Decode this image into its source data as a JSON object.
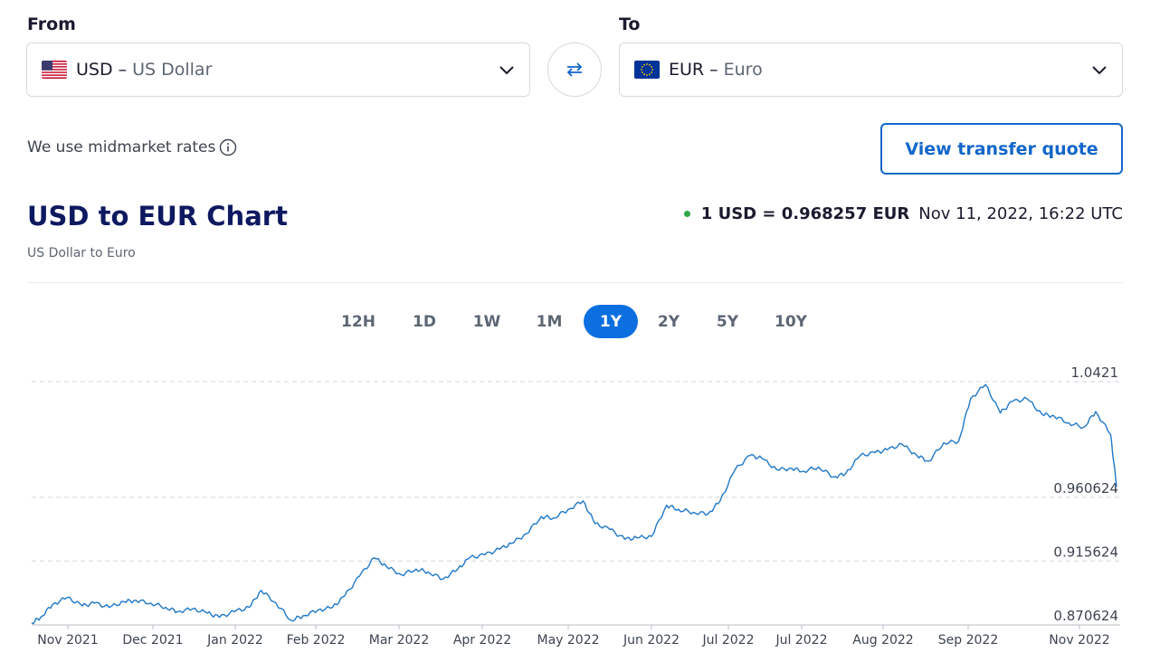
{
  "from": {
    "label": "From",
    "code": "USD",
    "dash": "–",
    "name": "US Dollar",
    "flag_icon": "us-flag-icon"
  },
  "to": {
    "label": "To",
    "code": "EUR",
    "dash": "–",
    "name": "Euro",
    "flag_icon": "eu-flag-icon"
  },
  "midmarket_text": "We use midmarket rates",
  "quote_button_label": "View transfer quote",
  "chart_title": "USD to EUR Chart",
  "chart_subtitle": "US Dollar to Euro",
  "rate_text": "1 USD = 0.968257 EUR",
  "rate_timestamp": "Nov 11, 2022, 16:22 UTC",
  "status_color": "#2ea84a",
  "accent_color": "#0b6fe0",
  "ranges": [
    "12H",
    "1D",
    "1W",
    "1M",
    "1Y",
    "2Y",
    "5Y",
    "10Y"
  ],
  "active_range": "1Y",
  "chart_data": {
    "type": "line",
    "title": "USD to EUR Chart",
    "x_tick_labels": [
      "Nov 2021",
      "Dec 2021",
      "Jan 2022",
      "Feb 2022",
      "Mar 2022",
      "Apr 2022",
      "May 2022",
      "Jun 2022",
      "Jul 2022",
      "Jul 2022",
      "Aug 2022",
      "Sep 2022",
      "Nov 2022"
    ],
    "y_tick_labels": [
      "1.0421",
      "0.960624",
      "0.915624",
      "0.870624"
    ],
    "y_gridlines": [
      1.0421,
      0.960624,
      0.915624,
      0.870624
    ],
    "ylim": [
      0.870624,
      1.0421
    ],
    "grid": "horizontal dashed",
    "line_color": "#1f78c8",
    "series": [
      {
        "x": [
          "2021-11-12",
          "2021-11-15",
          "2021-11-19",
          "2021-11-24",
          "2021-11-29",
          "2021-12-03",
          "2021-12-08",
          "2021-12-13",
          "2021-12-17",
          "2021-12-22",
          "2021-12-27",
          "2021-12-31",
          "2022-01-05",
          "2022-01-10",
          "2022-01-14",
          "2022-01-19",
          "2022-01-24",
          "2022-01-28",
          "2022-02-02",
          "2022-02-07",
          "2022-02-11",
          "2022-02-16",
          "2022-02-21",
          "2022-02-25",
          "2022-03-02",
          "2022-03-07",
          "2022-03-11",
          "2022-03-16",
          "2022-03-21",
          "2022-03-25",
          "2022-03-30",
          "2022-04-04",
          "2022-04-08",
          "2022-04-13",
          "2022-04-18",
          "2022-04-22",
          "2022-04-27",
          "2022-05-02",
          "2022-05-06",
          "2022-05-11",
          "2022-05-16",
          "2022-05-20",
          "2022-05-25",
          "2022-05-30",
          "2022-06-03",
          "2022-06-08",
          "2022-06-13",
          "2022-06-17",
          "2022-06-22",
          "2022-06-27",
          "2022-07-01",
          "2022-07-06",
          "2022-07-11",
          "2022-07-15",
          "2022-07-20",
          "2022-07-25",
          "2022-07-29",
          "2022-08-03",
          "2022-08-08",
          "2022-08-12",
          "2022-08-17",
          "2022-08-22",
          "2022-08-26",
          "2022-08-31",
          "2022-09-05",
          "2022-09-09",
          "2022-09-14",
          "2022-09-19",
          "2022-09-23",
          "2022-09-28",
          "2022-10-03",
          "2022-10-07",
          "2022-10-12",
          "2022-10-17",
          "2022-10-21",
          "2022-10-26",
          "2022-10-31",
          "2022-11-04",
          "2022-11-09",
          "2022-11-11"
        ],
        "y": [
          0.872,
          0.876,
          0.885,
          0.89,
          0.884,
          0.886,
          0.883,
          0.887,
          0.888,
          0.886,
          0.883,
          0.88,
          0.882,
          0.879,
          0.876,
          0.88,
          0.883,
          0.895,
          0.886,
          0.874,
          0.877,
          0.881,
          0.883,
          0.891,
          0.905,
          0.918,
          0.912,
          0.906,
          0.91,
          0.908,
          0.903,
          0.91,
          0.918,
          0.92,
          0.924,
          0.928,
          0.935,
          0.947,
          0.946,
          0.952,
          0.958,
          0.942,
          0.938,
          0.931,
          0.932,
          0.933,
          0.955,
          0.952,
          0.95,
          0.949,
          0.958,
          0.98,
          0.99,
          0.988,
          0.98,
          0.981,
          0.979,
          0.982,
          0.975,
          0.977,
          0.99,
          0.992,
          0.994,
          0.998,
          0.99,
          0.986,
          0.999,
          1.0,
          1.03,
          1.04,
          1.02,
          1.028,
          1.03,
          1.019,
          1.018,
          1.013,
          1.01,
          1.021,
          1.005,
          0.968
        ]
      }
    ]
  }
}
